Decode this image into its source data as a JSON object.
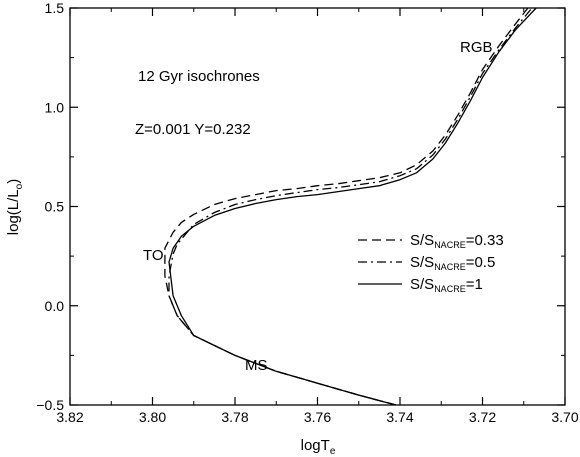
{
  "chart_data": {
    "type": "line",
    "title": "",
    "xlabel": "logT",
    "xlabel_sub": "e",
    "ylabel_main": "log(L/L",
    "ylabel_sub": "o",
    "ylabel_close": ")",
    "xlim": [
      3.82,
      3.7
    ],
    "ylim": [
      -0.5,
      1.5
    ],
    "x_reversed": true,
    "xticks": [
      3.82,
      3.8,
      3.78,
      3.76,
      3.74,
      3.72,
      3.7
    ],
    "xtick_labels": [
      "3.82",
      "3.80",
      "3.78",
      "3.76",
      "3.74",
      "3.72",
      "3.70"
    ],
    "yticks": [
      -0.5,
      0.0,
      0.5,
      1.0,
      1.5
    ],
    "ytick_labels": [
      "−0.5",
      "0.0",
      "0.5",
      "1.0",
      "1.5"
    ],
    "grid": false,
    "legend_position": "center-right",
    "annotations": {
      "line1": "12 Gyr isochrones",
      "line2": "Z=0.001 Y=0.232",
      "rgb": "RGB",
      "to": "TO",
      "ms": "MS"
    },
    "series": [
      {
        "legend_main": "S/S",
        "legend_sub": "NACRE",
        "legend_value": "=0.33",
        "style": "dashed",
        "x": [
          3.741,
          3.75,
          3.76,
          3.77,
          3.78,
          3.79,
          3.794,
          3.796,
          3.797,
          3.797,
          3.796,
          3.795,
          3.793,
          3.79,
          3.785,
          3.78,
          3.775,
          3.77,
          3.765,
          3.76,
          3.755,
          3.75,
          3.745,
          3.74,
          3.736,
          3.732,
          3.729,
          3.726,
          3.723,
          3.72,
          3.716,
          3.712,
          3.709
        ],
        "y": [
          -0.5,
          -0.45,
          -0.39,
          -0.33,
          -0.25,
          -0.15,
          -0.05,
          0.05,
          0.15,
          0.29,
          0.33,
          0.37,
          0.42,
          0.46,
          0.51,
          0.54,
          0.56,
          0.58,
          0.59,
          0.605,
          0.615,
          0.63,
          0.645,
          0.67,
          0.71,
          0.78,
          0.86,
          0.96,
          1.07,
          1.19,
          1.31,
          1.42,
          1.5
        ]
      },
      {
        "legend_main": "S/S",
        "legend_sub": "NACRE",
        "legend_value": "=0.5",
        "style": "dashdot",
        "x": [
          3.741,
          3.75,
          3.76,
          3.77,
          3.78,
          3.79,
          3.794,
          3.796,
          3.796,
          3.795,
          3.794,
          3.792,
          3.79,
          3.785,
          3.78,
          3.775,
          3.77,
          3.765,
          3.76,
          3.755,
          3.75,
          3.745,
          3.74,
          3.736,
          3.732,
          3.729,
          3.726,
          3.723,
          3.72,
          3.716,
          3.712,
          3.708
        ],
        "y": [
          -0.5,
          -0.45,
          -0.39,
          -0.33,
          -0.25,
          -0.15,
          -0.05,
          0.05,
          0.15,
          0.26,
          0.31,
          0.36,
          0.41,
          0.47,
          0.51,
          0.535,
          0.555,
          0.57,
          0.585,
          0.595,
          0.61,
          0.625,
          0.655,
          0.69,
          0.76,
          0.84,
          0.94,
          1.05,
          1.17,
          1.29,
          1.4,
          1.5
        ]
      },
      {
        "legend_main": "S/S",
        "legend_sub": "NACRE",
        "legend_value": "=1",
        "style": "solid",
        "x": [
          3.741,
          3.75,
          3.76,
          3.77,
          3.78,
          3.79,
          3.793,
          3.795,
          3.796,
          3.795,
          3.793,
          3.79,
          3.785,
          3.78,
          3.775,
          3.77,
          3.765,
          3.76,
          3.755,
          3.75,
          3.745,
          3.74,
          3.736,
          3.732,
          3.729,
          3.726,
          3.723,
          3.72,
          3.716,
          3.712,
          3.707
        ],
        "y": [
          -0.5,
          -0.45,
          -0.39,
          -0.33,
          -0.25,
          -0.15,
          -0.05,
          0.05,
          0.22,
          0.29,
          0.35,
          0.4,
          0.455,
          0.49,
          0.515,
          0.535,
          0.55,
          0.56,
          0.575,
          0.59,
          0.605,
          0.635,
          0.67,
          0.74,
          0.82,
          0.92,
          1.03,
          1.15,
          1.28,
          1.39,
          1.5
        ]
      }
    ]
  }
}
